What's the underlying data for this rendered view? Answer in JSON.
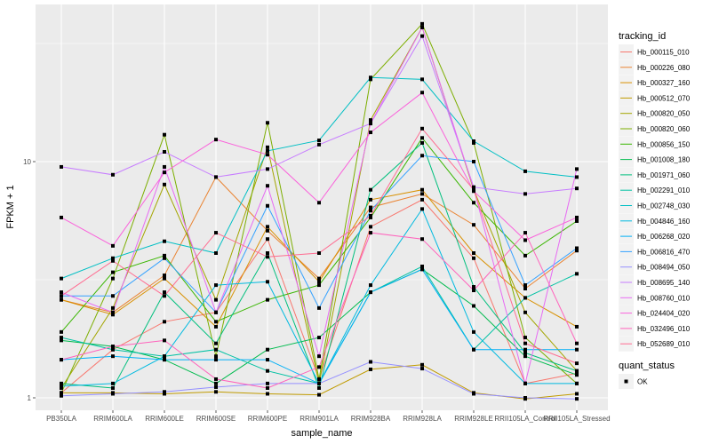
{
  "chart_data": {
    "type": "line",
    "title": "",
    "xlabel": "sample_name",
    "ylabel": "FPKM + 1",
    "y_scale": "log10",
    "ylim": [
      0.95,
      46
    ],
    "y_ticks": [
      1,
      10
    ],
    "y_tick_labels": [
      "1",
      "10"
    ],
    "grid": true,
    "categories": [
      "PB350LA",
      "RRIM600LA",
      "RRIM600LE",
      "RRIM600SE",
      "RRIM600PE",
      "RRIM901LA",
      "RRIM928BA",
      "RRIM928LA",
      "RRIM928LE",
      "RRII105LA_Control",
      "RRII105LA_Stressed"
    ],
    "legend": {
      "title": "tracking_id",
      "placement": "right",
      "shape_legend_title": "quant_status",
      "shape_legend_items": [
        "OK"
      ]
    },
    "series": [
      {
        "name": "Hb_000115_010",
        "color": "#F8766D",
        "values": [
          1.05,
          1.6,
          2.1,
          2.3,
          4.7,
          1.2,
          5.3,
          6.9,
          3.9,
          1.15,
          1.27
        ]
      },
      {
        "name": "Hb_000226_080",
        "color": "#EA8331",
        "values": [
          2.6,
          2.3,
          3.3,
          8.6,
          5.1,
          3.2,
          6.4,
          7.3,
          5.4,
          2.9,
          4.2
        ]
      },
      {
        "name": "Hb_000327_160",
        "color": "#D89000",
        "values": [
          2.6,
          2.25,
          3.2,
          2.0,
          5.3,
          3.1,
          6.9,
          7.6,
          4.1,
          2.65,
          2.0
        ]
      },
      {
        "name": "Hb_000512_070",
        "color": "#C09B00",
        "values": [
          1.05,
          1.05,
          1.04,
          1.06,
          1.04,
          1.03,
          1.32,
          1.38,
          1.05,
          0.99,
          1.04
        ]
      },
      {
        "name": "Hb_000820_050",
        "color": "#A3A500",
        "values": [
          1.1,
          2.4,
          8.0,
          2.6,
          11.5,
          1.15,
          15.0,
          37.0,
          7.6,
          2.3,
          1.3
        ]
      },
      {
        "name": "Hb_000820_060",
        "color": "#7CAE00",
        "values": [
          1.05,
          3.2,
          13.0,
          1.5,
          14.6,
          1.2,
          22.3,
          38.3,
          12.0,
          1.8,
          1.15
        ]
      },
      {
        "name": "Hb_000856_150",
        "color": "#39B600",
        "values": [
          1.9,
          3.4,
          4.0,
          2.1,
          2.6,
          3.0,
          5.8,
          12.6,
          6.7,
          4.0,
          5.6
        ]
      },
      {
        "name": "Hb_001008_180",
        "color": "#00BB4E",
        "values": [
          1.75,
          1.65,
          1.45,
          1.15,
          1.6,
          1.8,
          2.8,
          3.5,
          2.45,
          1.5,
          1.25
        ]
      },
      {
        "name": "Hb_001971_060",
        "color": "#00BF7D",
        "values": [
          1.15,
          1.1,
          2.8,
          1.7,
          4.1,
          1.1,
          7.6,
          12.0,
          2.95,
          1.55,
          1.3
        ]
      },
      {
        "name": "Hb_002291_010",
        "color": "#00C1A3",
        "values": [
          1.8,
          1.6,
          1.5,
          1.6,
          1.3,
          1.15,
          2.8,
          3.6,
          1.6,
          2.65,
          3.35
        ]
      },
      {
        "name": "Hb_002748_030",
        "color": "#00BFC4",
        "values": [
          3.2,
          3.9,
          4.6,
          4.1,
          11.1,
          12.3,
          22.7,
          22.3,
          12.2,
          9.1,
          8.6
        ]
      },
      {
        "name": "Hb_004846_160",
        "color": "#00BAE0",
        "values": [
          1.12,
          1.15,
          1.5,
          3.0,
          3.1,
          1.15,
          3.0,
          6.3,
          1.9,
          1.15,
          1.15
        ]
      },
      {
        "name": "Hb_006268_020",
        "color": "#00B0F6",
        "values": [
          1.45,
          1.5,
          1.45,
          1.45,
          1.45,
          1.15,
          2.8,
          3.5,
          1.6,
          1.6,
          1.6
        ]
      },
      {
        "name": "Hb_006816_470",
        "color": "#35A2FF",
        "values": [
          2.7,
          2.7,
          3.9,
          2.3,
          6.5,
          2.4,
          6.2,
          10.6,
          10.0,
          3.0,
          4.3
        ]
      },
      {
        "name": "Hb_008494_050",
        "color": "#9590FF",
        "values": [
          1.02,
          1.04,
          1.06,
          1.11,
          1.15,
          1.15,
          1.42,
          1.33,
          1.04,
          1.0,
          0.99
        ]
      },
      {
        "name": "Hb_008695_140",
        "color": "#C77CFF",
        "values": [
          9.5,
          8.8,
          11.0,
          8.6,
          9.3,
          11.8,
          14.5,
          34.0,
          7.8,
          7.3,
          7.7
        ]
      },
      {
        "name": "Hb_008760_010",
        "color": "#E76BF3",
        "values": [
          2.8,
          2.3,
          9.5,
          2.3,
          7.9,
          1.5,
          14.5,
          37.0,
          7.7,
          1.15,
          9.3
        ]
      },
      {
        "name": "Hb_024404_020",
        "color": "#FA62DB",
        "values": [
          5.8,
          4.4,
          9.0,
          12.4,
          10.7,
          6.7,
          13.3,
          19.6,
          7.5,
          4.65,
          5.8
        ]
      },
      {
        "name": "Hb_032496_010",
        "color": "#FF62BC",
        "values": [
          1.45,
          1.65,
          1.75,
          1.2,
          1.1,
          1.35,
          5.0,
          4.7,
          2.85,
          5.0,
          1.7
        ]
      },
      {
        "name": "Hb_052689_010",
        "color": "#FF6C91",
        "values": [
          2.7,
          3.8,
          2.7,
          5.0,
          3.95,
          4.1,
          5.9,
          13.8,
          7.6,
          1.7,
          1.4
        ]
      }
    ]
  }
}
